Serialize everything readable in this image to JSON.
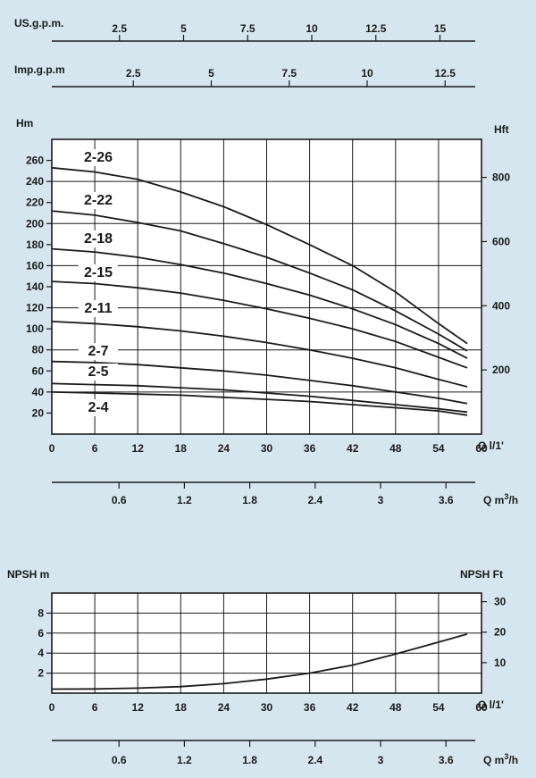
{
  "chart_data": [
    {
      "type": "line",
      "title": "",
      "top_scales": [
        {
          "label": "US.g.p.m.",
          "ticks": [
            "2.5",
            "5",
            "7.5",
            "10",
            "12.5",
            "15"
          ],
          "values": [
            2.5,
            5,
            7.5,
            10,
            12.5,
            15
          ]
        },
        {
          "label": "Imp.g.p.m",
          "ticks": [
            "2.5",
            "5",
            "7.5",
            "10",
            "12.5"
          ],
          "values": [
            2.5,
            5,
            7.5,
            10,
            12.5
          ]
        }
      ],
      "xlabel": "Q l/1'",
      "x_ticks": [
        "0",
        "6",
        "12",
        "18",
        "24",
        "30",
        "36",
        "42",
        "48",
        "54",
        "60"
      ],
      "xlim": [
        0,
        60
      ],
      "ylabel": "Hm",
      "y_ticks": [
        "20",
        "40",
        "60",
        "80",
        "100",
        "120",
        "140",
        "160",
        "180",
        "200",
        "220",
        "240",
        "260"
      ],
      "ylim": [
        0,
        280
      ],
      "y2label": "Hft",
      "y2_ticks": [
        "200",
        "400",
        "600",
        "800"
      ],
      "x2label": "Q m³/h",
      "x2_ticks": [
        "0.6",
        "1.2",
        "1.8",
        "2.4",
        "3",
        "3.6"
      ],
      "series": [
        {
          "name": "2-26",
          "x": [
            0,
            6,
            12,
            18,
            24,
            30,
            36,
            42,
            48,
            54,
            58
          ],
          "y": [
            253,
            249,
            242,
            230,
            216,
            199,
            180,
            160,
            135,
            105,
            86
          ]
        },
        {
          "name": "2-22",
          "x": [
            0,
            6,
            12,
            18,
            24,
            30,
            36,
            42,
            48,
            54,
            58
          ],
          "y": [
            212,
            208,
            201,
            193,
            181,
            168,
            153,
            137,
            117,
            95,
            79
          ]
        },
        {
          "name": "2-18",
          "x": [
            0,
            6,
            12,
            18,
            24,
            30,
            36,
            42,
            48,
            54,
            58
          ],
          "y": [
            176,
            173,
            168,
            161,
            153,
            143,
            132,
            119,
            104,
            86,
            72
          ]
        },
        {
          "name": "2-15",
          "x": [
            0,
            6,
            12,
            18,
            24,
            30,
            36,
            42,
            48,
            54,
            58
          ],
          "y": [
            145,
            143,
            139,
            134,
            127,
            119,
            110,
            100,
            88,
            73,
            63
          ]
        },
        {
          "name": "2-11",
          "x": [
            0,
            6,
            12,
            18,
            24,
            30,
            36,
            42,
            48,
            54,
            58
          ],
          "y": [
            107,
            105,
            102,
            98,
            93,
            87,
            80,
            72,
            63,
            52,
            45
          ]
        },
        {
          "name": "2-7",
          "x": [
            0,
            6,
            12,
            18,
            24,
            30,
            36,
            42,
            48,
            54,
            58
          ],
          "y": [
            69,
            68,
            66,
            63,
            60,
            56,
            51,
            46,
            40,
            34,
            29
          ]
        },
        {
          "name": "2-5",
          "x": [
            0,
            6,
            12,
            18,
            24,
            30,
            36,
            42,
            48,
            54,
            58
          ],
          "y": [
            48,
            47,
            46,
            44,
            42,
            39,
            36,
            32,
            28,
            24,
            21
          ]
        },
        {
          "name": "2-4",
          "x": [
            0,
            6,
            12,
            18,
            24,
            30,
            36,
            42,
            48,
            54,
            58
          ],
          "y": [
            40,
            39,
            38,
            37,
            35,
            33,
            31,
            28,
            25,
            22,
            18
          ]
        }
      ]
    },
    {
      "type": "line",
      "ylabel": "NPSH m",
      "y_ticks": [
        "2",
        "4",
        "6",
        "8"
      ],
      "ylim": [
        0,
        10
      ],
      "y2label": "NPSH  Ft",
      "y2_ticks": [
        "10",
        "20",
        "30"
      ],
      "xlabel": "Q l/1'",
      "x_ticks": [
        "0",
        "6",
        "12",
        "18",
        "24",
        "30",
        "36",
        "42",
        "48",
        "54",
        "60"
      ],
      "xlim": [
        0,
        60
      ],
      "x2label": "Q m³/h",
      "x2_ticks": [
        "0.6",
        "1.2",
        "1.8",
        "2.4",
        "3",
        "3.6"
      ],
      "series": [
        {
          "x": [
            0,
            6,
            12,
            18,
            24,
            30,
            36,
            42,
            48,
            54,
            58
          ],
          "y": [
            0.4,
            0.42,
            0.5,
            0.65,
            0.95,
            1.4,
            2.0,
            2.8,
            3.9,
            5.1,
            5.9
          ]
        }
      ]
    }
  ]
}
